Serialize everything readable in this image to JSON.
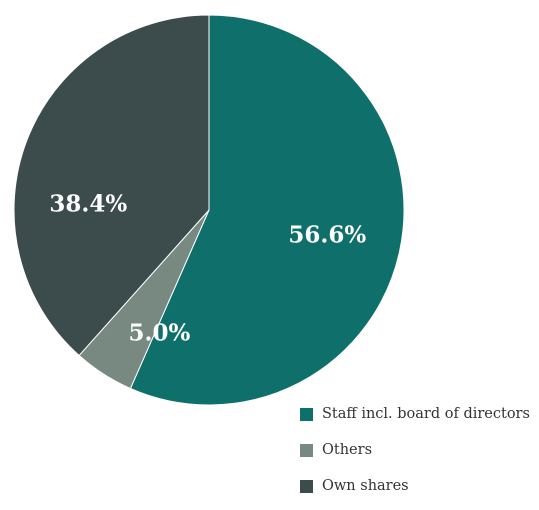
{
  "chart_data": {
    "type": "pie",
    "title": "",
    "slices": [
      {
        "label": "Staff incl. board of directors",
        "value": 56.6,
        "display": "56.6%",
        "color": "#0f706b"
      },
      {
        "label": "Others",
        "value": 5.0,
        "display": "5.0%",
        "color": "#778981"
      },
      {
        "label": "Own shares",
        "value": 38.4,
        "display": "38.4%",
        "color": "#3c4b4b"
      }
    ],
    "start_angle": "12 o'clock",
    "direction": "clockwise",
    "legend_position": "bottom-right"
  }
}
